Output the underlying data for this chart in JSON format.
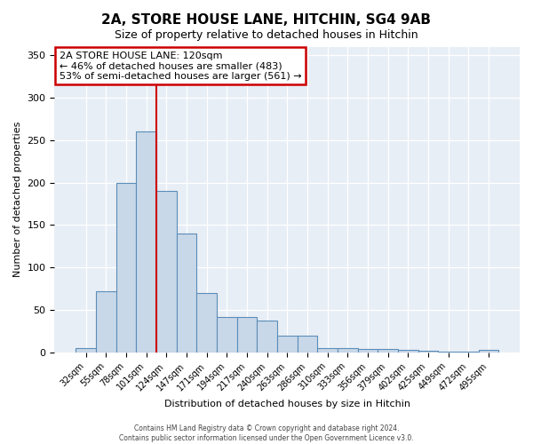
{
  "title": "2A, STORE HOUSE LANE, HITCHIN, SG4 9AB",
  "subtitle": "Size of property relative to detached houses in Hitchin",
  "xlabel": "Distribution of detached houses by size in Hitchin",
  "ylabel": "Number of detached properties",
  "bar_color": "#c8d8e8",
  "bar_edge_color": "#5b8db8",
  "bar_heights": [
    5,
    72,
    200,
    260,
    190,
    140,
    70,
    42,
    42,
    38,
    20,
    20,
    5,
    5,
    4,
    4,
    3,
    2,
    1,
    1,
    3
  ],
  "categories": [
    "32sqm",
    "55sqm",
    "78sqm",
    "101sqm",
    "124sqm",
    "147sqm",
    "171sqm",
    "194sqm",
    "217sqm",
    "240sqm",
    "263sqm",
    "286sqm",
    "310sqm",
    "333sqm",
    "356sqm",
    "379sqm",
    "402sqm",
    "425sqm",
    "449sqm",
    "472sqm",
    "495sqm"
  ],
  "property_line_x": 3.5,
  "annotation_text": "2A STORE HOUSE LANE: 120sqm\n← 46% of detached houses are smaller (483)\n53% of semi-detached houses are larger (561) →",
  "annotation_box_color": "#ffffff",
  "annotation_box_edge_color": "#cc0000",
  "footer": "Contains HM Land Registry data © Crown copyright and database right 2024.\nContains public sector information licensed under the Open Government Licence v3.0.",
  "background_color": "#e8eef5",
  "ylim": [
    0,
    360
  ],
  "yticks": [
    0,
    50,
    100,
    150,
    200,
    250,
    300,
    350
  ]
}
